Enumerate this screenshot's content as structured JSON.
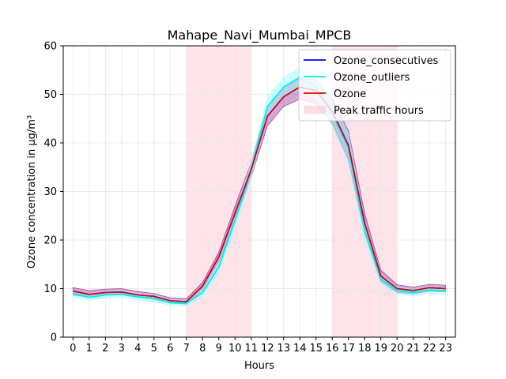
{
  "chart_data": {
    "type": "line",
    "title": "Mahape_Navi_Mumbai_MPCB",
    "xlabel": "Hours",
    "ylabel": "Ozone concentration in µg/m³",
    "xlim": [
      -0.6,
      23.6
    ],
    "ylim": [
      0,
      60
    ],
    "x_ticks": [
      0,
      1,
      2,
      3,
      4,
      5,
      6,
      7,
      8,
      9,
      10,
      11,
      12,
      13,
      14,
      15,
      16,
      17,
      18,
      19,
      20,
      21,
      22,
      23
    ],
    "y_ticks": [
      0,
      10,
      20,
      30,
      40,
      50,
      60
    ],
    "grid": true,
    "legend_position": "top-right",
    "shaded_regions": [
      {
        "name": "Peak traffic hours",
        "from": 7,
        "to": 11,
        "color": "#ffc0cb"
      },
      {
        "from": 16,
        "to": 20,
        "color": "#ffc0cb"
      }
    ],
    "x": [
      0,
      1,
      2,
      3,
      4,
      5,
      6,
      7,
      8,
      9,
      10,
      11,
      12,
      13,
      14,
      15,
      16,
      17,
      18,
      19,
      20,
      21,
      22,
      23
    ],
    "series": [
      {
        "name": "Ozone_consecutives",
        "color": "#0000ff",
        "values": [
          9.5,
          8.8,
          9.2,
          9.3,
          8.7,
          8.4,
          7.5,
          7.3,
          10.5,
          16.5,
          25.5,
          34.5,
          45.5,
          49.5,
          51.5,
          50.8,
          46.5,
          39.5,
          23.5,
          12.6,
          10.0,
          9.6,
          10.2,
          10.0
        ],
        "band_lower": [
          8.7,
          8.2,
          8.6,
          8.7,
          8.2,
          7.8,
          7.0,
          6.8,
          9.8,
          15.5,
          24.0,
          33.0,
          43.5,
          47.5,
          49.0,
          48.0,
          44.0,
          36.5,
          21.5,
          11.5,
          9.2,
          8.9,
          9.5,
          9.3
        ],
        "band_upper": [
          10.2,
          9.6,
          9.9,
          10.0,
          9.4,
          9.0,
          8.1,
          7.9,
          11.3,
          17.5,
          27.0,
          36.0,
          47.5,
          51.5,
          53.5,
          53.0,
          49.0,
          42.5,
          25.5,
          13.8,
          10.8,
          10.3,
          10.9,
          10.7
        ],
        "band_color": "#800080"
      },
      {
        "name": "Ozone_outliers",
        "color": "#00eeee",
        "values": [
          9.0,
          8.2,
          8.7,
          8.9,
          8.3,
          8.0,
          7.1,
          7.0,
          9.2,
          14.5,
          24.0,
          34.5,
          47.5,
          51.5,
          53.5,
          51.5,
          46.0,
          39.0,
          22.0,
          12.0,
          9.6,
          9.2,
          9.7,
          9.5
        ],
        "band_lower": [
          8.3,
          7.6,
          8.0,
          8.2,
          7.6,
          7.3,
          6.5,
          6.4,
          8.4,
          13.2,
          22.5,
          33.0,
          45.5,
          49.5,
          51.0,
          49.0,
          43.5,
          36.0,
          20.0,
          11.0,
          8.9,
          8.5,
          9.0,
          8.8
        ],
        "band_upper": [
          9.7,
          8.9,
          9.4,
          9.6,
          9.0,
          8.7,
          7.7,
          7.6,
          10.0,
          15.8,
          25.5,
          36.0,
          49.5,
          53.5,
          55.5,
          54.0,
          48.5,
          42.0,
          24.0,
          13.0,
          10.3,
          9.9,
          10.4,
          10.2
        ],
        "band_color": "#99ffff"
      },
      {
        "name": "Ozone",
        "color": "#dd0000",
        "values": [
          9.5,
          8.8,
          9.2,
          9.3,
          8.7,
          8.4,
          7.5,
          7.3,
          10.5,
          16.5,
          25.5,
          34.5,
          45.5,
          49.5,
          51.5,
          50.8,
          46.5,
          39.5,
          23.5,
          12.6,
          10.0,
          9.6,
          10.2,
          10.0
        ]
      }
    ],
    "legend": [
      "Ozone_consecutives",
      "Ozone_outliers",
      "Ozone",
      "Peak traffic hours"
    ]
  }
}
